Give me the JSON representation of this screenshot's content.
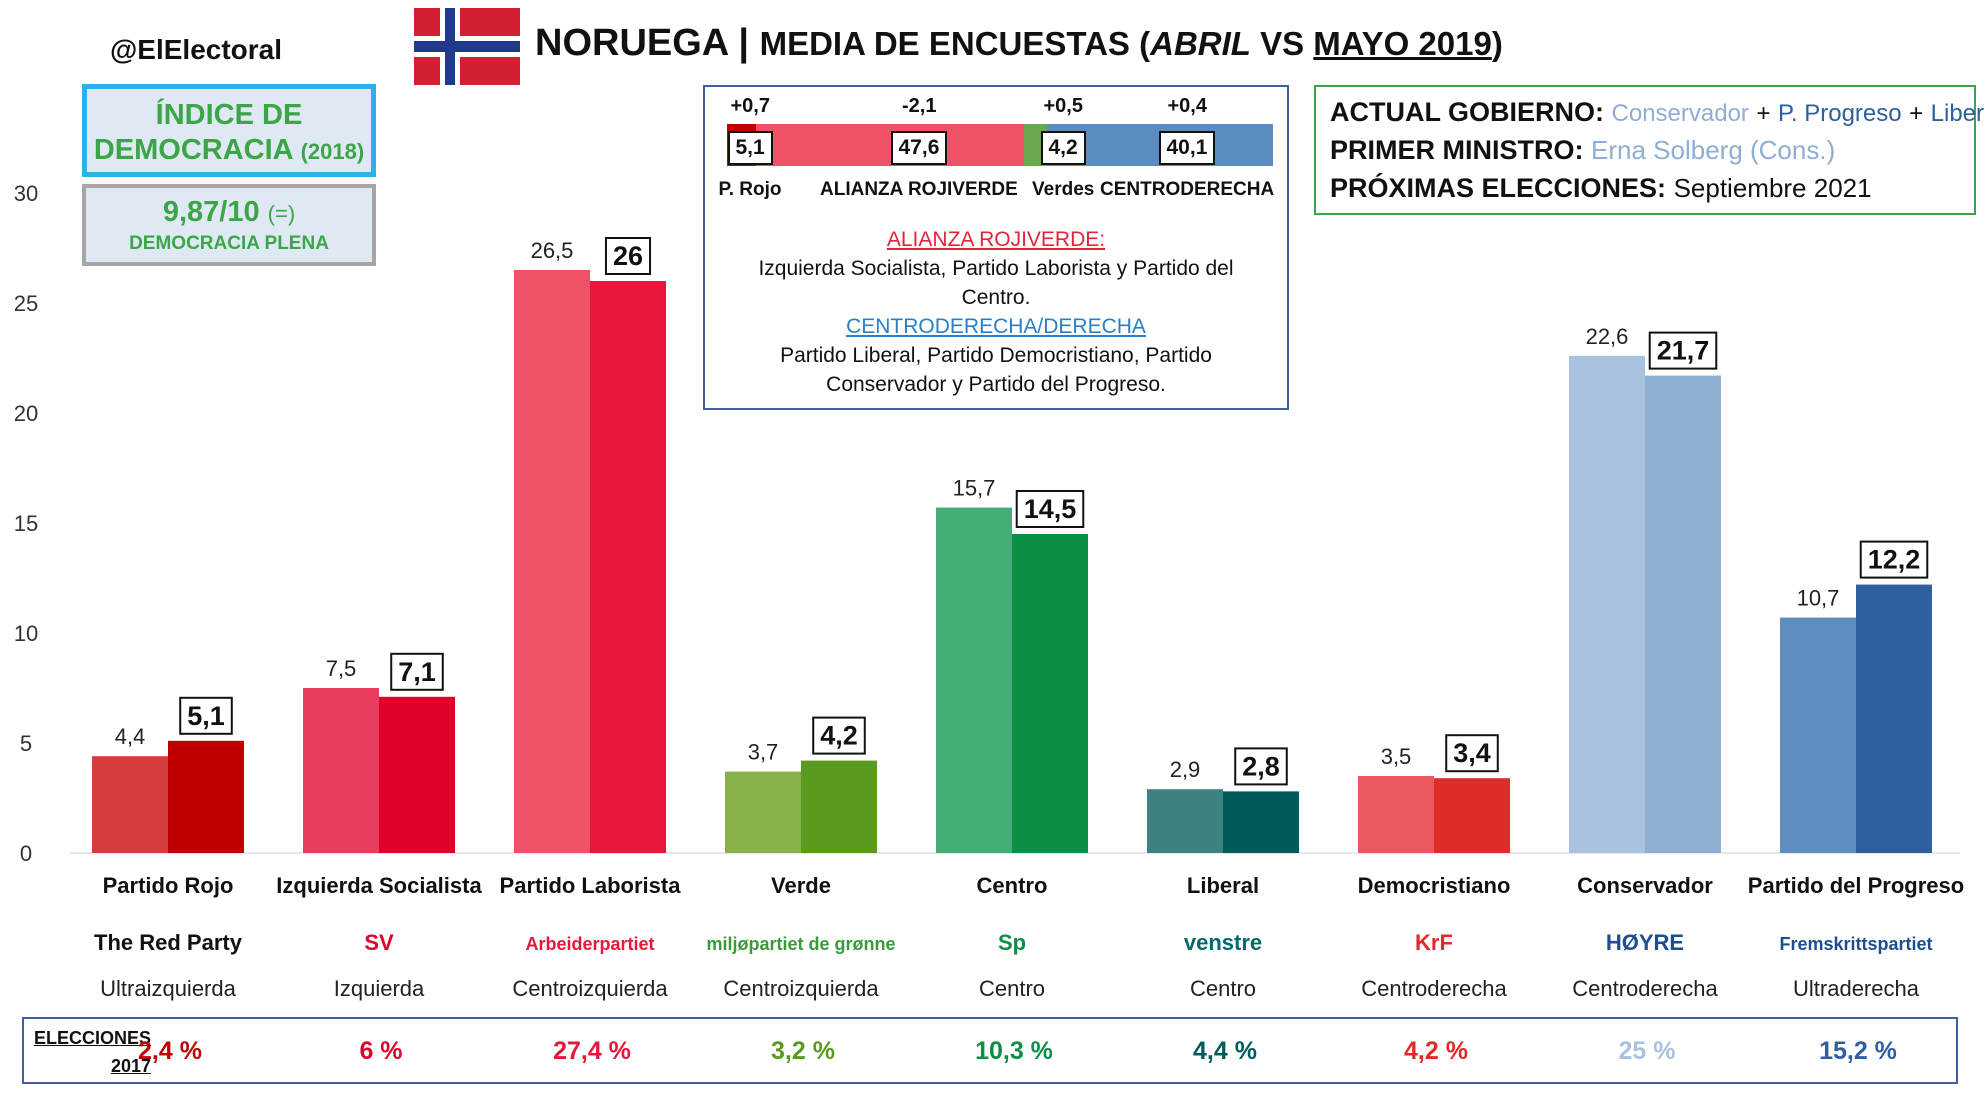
{
  "handle": "@ElElectoral",
  "title": {
    "main": "NORUEGA | ",
    "sub_prefix": "MEDIA DE ENCUESTAS (",
    "month_a": "ABRIL",
    "vs": " VS ",
    "month_b": "MAYO 2019",
    "close": ")"
  },
  "democracy": {
    "line1": "ÍNDICE DE",
    "line2": "DEMOCRACIA",
    "year": "(2018)",
    "score": "9,87/10",
    "score_change": "(=)",
    "category": "DEMOCRACIA PLENA"
  },
  "alliance": {
    "blocks": [
      {
        "delta": "+0,7",
        "value": "5,1",
        "name": "P. Rojo",
        "share": 5.1,
        "color": "#c00000"
      },
      {
        "delta": "-2,1",
        "value": "47,6",
        "name": "ALIANZA ROJIVERDE",
        "share": 47.6,
        "color": "#ef5166"
      },
      {
        "delta": "+0,5",
        "value": "4,2",
        "name": "Verdes",
        "share": 4.2,
        "color": "#6aa84f"
      },
      {
        "delta": "+0,4",
        "value": "40,1",
        "name": "CENTRODERECHA",
        "share": 40.1,
        "color": "#5b8dc2"
      }
    ],
    "redgreen_title": "ALIANZA ROJIVERDE:",
    "redgreen_line1": "Izquierda Socialista, Partido Laborista y Partido del",
    "redgreen_line2": "Centro.",
    "right_title": "CENTRODERECHA/DERECHA",
    "right_line1": "Partido Liberal, Partido Democristiano, Partido",
    "right_line2": "Conservador y Partido del Progreso."
  },
  "government": {
    "gov_label": "ACTUAL GOBIERNO:",
    "gov_p1": "Conservador",
    "plus": "+",
    "gov_p2": "P. Progreso",
    "gov_p3": "Liberal",
    "pm_label": "PRIMER MINISTRO:",
    "pm_value": "Erna Solberg (Cons.)",
    "next_label": "PRÓXIMAS ELECCIONES:",
    "next_value": "Septiembre 2021"
  },
  "colors": {
    "gov_p1": "#8eaed4",
    "gov_p2": "#2e5f9e",
    "gov_p3": "#2e5f9e",
    "pm_value": "#8eaed4",
    "redgreen_title": "#e0243c",
    "right_title": "#2a7fc9"
  },
  "chart_data": {
    "type": "bar",
    "ylim": [
      0,
      30
    ],
    "yticks": [
      "0",
      "5",
      "10",
      "15",
      "20",
      "25",
      "30"
    ],
    "grid": false,
    "categories": [
      "Partido Rojo",
      "Izquierda Socialista",
      "Partido Laborista",
      "Verde",
      "Centro",
      "Liberal",
      "Democristiano",
      "Conservador",
      "Partido del Progreso"
    ],
    "series": [
      {
        "values": [
          4.4,
          7.5,
          26.5,
          3.7,
          15.7,
          2.9,
          3.5,
          22.6,
          10.7
        ],
        "labels": [
          "4,4",
          "7,5",
          "26,5",
          "3,7",
          "15,7",
          "2,9",
          "3,5",
          "22,6",
          "10,7"
        ],
        "colors": [
          "#d43d3d",
          "#e83d5c",
          "#ef5166",
          "#88b04b",
          "#44ac77",
          "#3f8080",
          "#e85a60",
          "#a8c2e0",
          "#5e8dc0"
        ]
      },
      {
        "values": [
          5.1,
          7.1,
          26,
          4.2,
          14.5,
          2.8,
          3.4,
          21.7,
          12.2
        ],
        "labels": [
          "5,1",
          "7,1",
          "26",
          "4,2",
          "14,5",
          "2,8",
          "3,4",
          "21,7",
          "12,2"
        ],
        "colors": [
          "#c00000",
          "#e0002a",
          "#e8163a",
          "#5a9a1e",
          "#0b8f47",
          "#005b5b",
          "#e02b2b",
          "#8eaed4",
          "#2e5f9e"
        ]
      }
    ],
    "ideology": [
      "Ultraizquierda",
      "Izquierda",
      "Centroizquierda",
      "Centroizquierda",
      "Centro",
      "Centro",
      "Centroderecha",
      "Centroderecha",
      "Ultraderecha"
    ],
    "logos": [
      "The Red Party",
      "SV",
      "Arbeiderpartiet",
      "miljøpartiet de grønne",
      "Sp",
      "venstre",
      "KrF",
      "HØYRE",
      "Fremskrittspartiet"
    ],
    "logo_colors": [
      "#111111",
      "#e0002a",
      "#e8163a",
      "#3c9a3c",
      "#0b8f47",
      "#006a6a",
      "#e02b2b",
      "#1f4e8f",
      "#1f4e8f"
    ]
  },
  "elections": {
    "label1": "ELECCIONES",
    "label2": "2017",
    "values": [
      "2,4 %",
      "6 %",
      "27,4 %",
      "3,2 %",
      "10,3 %",
      "4,4 %",
      "4,2 %",
      "25 %",
      "15,2 %"
    ],
    "colors": [
      "#c00000",
      "#e0002a",
      "#e8163a",
      "#5a9a1e",
      "#0b8f47",
      "#005b5b",
      "#e02b2b",
      "#a8c2e0",
      "#2e5f9e"
    ]
  }
}
